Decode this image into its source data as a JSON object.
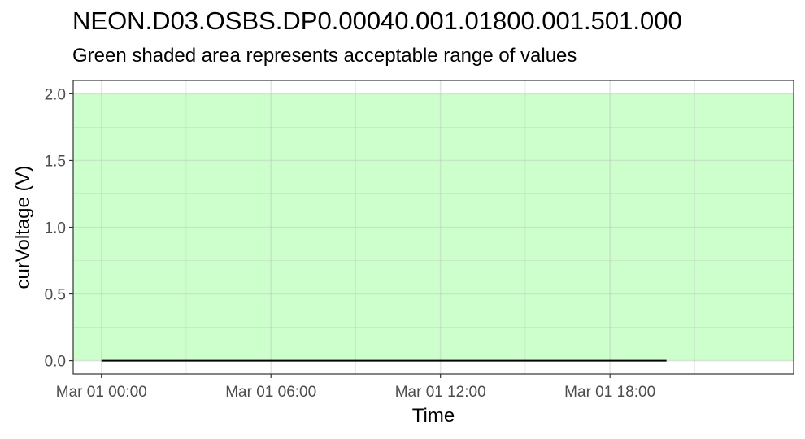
{
  "chart_data": {
    "type": "line",
    "title": "NEON.D03.OSBS.DP0.00040.001.01800.001.501.000",
    "subtitle": "Green shaded area represents acceptable range of values",
    "xlabel": "Time",
    "ylabel": "curVoltage (V)",
    "x_ticks": [
      "Mar 01 00:00",
      "Mar 01 06:00",
      "Mar 01 12:00",
      "Mar 01 18:00"
    ],
    "y_ticks": [
      "0.0",
      "0.5",
      "1.0",
      "1.5",
      "2.0"
    ],
    "xlim": [
      "Feb 29 23:00",
      "Mar 02 00:30"
    ],
    "ylim": [
      -0.1,
      2.1
    ],
    "acceptable_range": [
      0,
      2
    ],
    "grid": true,
    "colors": {
      "band": "#ccffcc",
      "line": "#000000",
      "grid": "#ebebeb"
    },
    "series": [
      {
        "x": [
          "Mar 01 00:00",
          "Mar 01 20:00"
        ],
        "y": [
          0,
          0
        ]
      }
    ]
  }
}
